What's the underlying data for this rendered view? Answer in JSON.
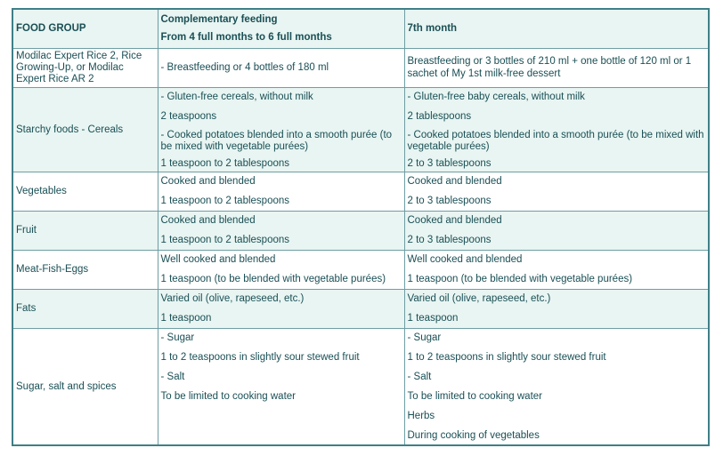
{
  "header": {
    "food_group": "FOOD GROUP",
    "col2_line1": "Complementary feeding",
    "col2_line2": "From 4 full months to 6 full months",
    "col3": "7th month"
  },
  "rows": [
    {
      "group": "Modilac Expert Rice 2, Rice Growing-Up, or Modilac Expert Rice AR 2",
      "col2": [
        "- Breastfeeding or 4 bottles of 180 ml"
      ],
      "col3": [
        "Breastfeeding or 3 bottles of 210 ml + one bottle of 120 ml or 1 sachet of My 1st milk-free dessert"
      ]
    },
    {
      "group": "Starchy foods - Cereals",
      "col2": [
        "- Gluten-free cereals, without milk",
        "2 teaspoons",
        "- Cooked potatoes blended into a smooth purée (to be mixed with vegetable purées)",
        "1 teaspoon to 2 tablespoons"
      ],
      "col3": [
        "- Gluten-free baby cereals, without milk",
        "2 tablespoons",
        "- Cooked potatoes blended into a smooth purée (to be mixed with vegetable purées)",
        "2 to 3 tablespoons"
      ]
    },
    {
      "group": "Vegetables",
      "col2": [
        "Cooked and blended",
        "1 teaspoon to 2 tablespoons"
      ],
      "col3": [
        "Cooked and blended",
        "2 to 3 tablespoons"
      ]
    },
    {
      "group": "Fruit",
      "col2": [
        "Cooked and blended",
        "1 teaspoon to 2 tablespoons"
      ],
      "col3": [
        "Cooked and blended",
        "2 to 3 tablespoons"
      ]
    },
    {
      "group": "Meat-Fish-Eggs",
      "col2": [
        "Well cooked and blended",
        "1 teaspoon (to be blended with vegetable purées)"
      ],
      "col3": [
        "Well cooked and blended",
        "1 teaspoon (to be blended with vegetable purées)"
      ]
    },
    {
      "group": "Fats",
      "col2": [
        "Varied oil (olive, rapeseed, etc.)",
        "1 teaspoon"
      ],
      "col3": [
        "Varied oil (olive, rapeseed, etc.)",
        "1 teaspoon"
      ]
    },
    {
      "group": "Sugar, salt and spices",
      "col2": [
        "- Sugar",
        "1 to 2 teaspoons in slightly sour stewed fruit",
        "- Salt",
        "To be limited to cooking water"
      ],
      "col3": [
        "- Sugar",
        "1 to 2 teaspoons in slightly sour stewed fruit",
        "- Salt",
        "To be limited to cooking water",
        "Herbs",
        "During cooking of vegetables"
      ]
    }
  ]
}
